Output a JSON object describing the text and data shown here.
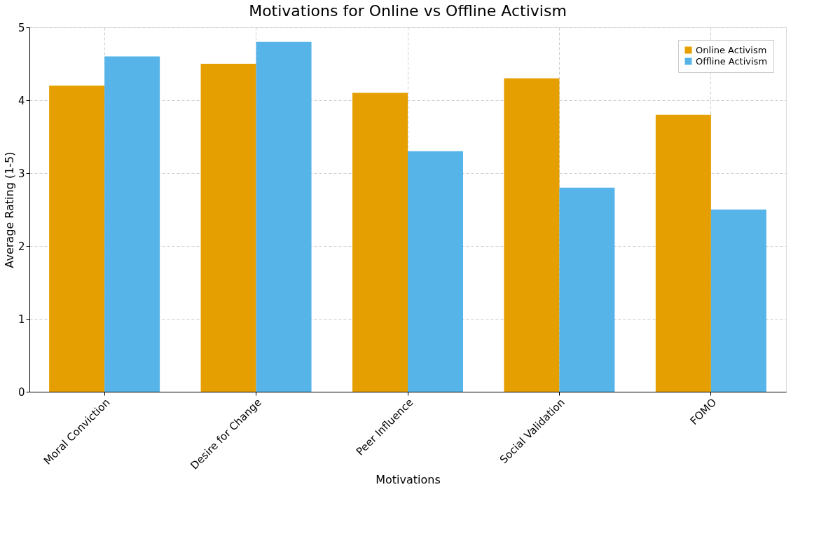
{
  "chart_data": {
    "type": "bar",
    "title": "Motivations for Online vs Offline Activism",
    "xlabel": "Motivations",
    "ylabel": "Average Rating (1-5)",
    "categories": [
      "Moral Conviction",
      "Desire for Change",
      "Peer Influence",
      "Social Validation",
      "FOMO"
    ],
    "series": [
      {
        "name": "Online Activism",
        "color": "#e69f00",
        "values": [
          4.2,
          4.5,
          4.1,
          4.3,
          3.8
        ]
      },
      {
        "name": "Offline Activism",
        "color": "#56b4e9",
        "values": [
          4.6,
          4.8,
          3.3,
          2.8,
          2.5
        ]
      }
    ],
    "ylim": [
      0,
      5
    ],
    "yticks": [
      0,
      1,
      2,
      3,
      4,
      5
    ],
    "grid": true,
    "legend": "top right"
  }
}
